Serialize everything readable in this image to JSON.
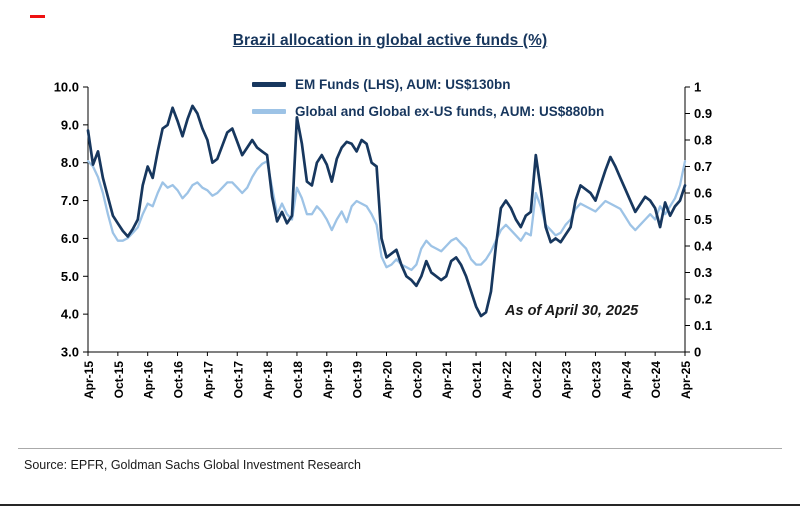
{
  "page": {
    "source_note": "Source: EPFR, Goldman Sachs Global Investment Research"
  },
  "chart_data": {
    "type": "line",
    "title": "Brazil allocation in global active funds (%)",
    "annotation": "As of April 30, 2025",
    "grid": false,
    "legend_position": "top",
    "n_points": 121,
    "x_tick_step": 6,
    "x_tick_labels": [
      "Apr-15",
      "Oct-15",
      "Apr-16",
      "Oct-16",
      "Apr-17",
      "Oct-17",
      "Apr-18",
      "Oct-18",
      "Apr-19",
      "Oct-19",
      "Apr-20",
      "Oct-20",
      "Apr-21",
      "Oct-21",
      "Apr-22",
      "Oct-22",
      "Apr-23",
      "Oct-23",
      "Apr-24",
      "Oct-24",
      "Apr-25"
    ],
    "left_axis": {
      "min": 3.0,
      "max": 10.0,
      "ticks": [
        "10.0",
        "9.0",
        "8.0",
        "7.0",
        "6.0",
        "5.0",
        "4.0",
        "3.0"
      ]
    },
    "right_axis": {
      "min": 0,
      "max": 1,
      "ticks": [
        "1",
        "0.9",
        "0.8",
        "0.7",
        "0.6",
        "0.5",
        "0.4",
        "0.3",
        "0.2",
        "0.1",
        "0"
      ]
    },
    "series": [
      {
        "name": "EM Funds (LHS), AUM: US$130bn",
        "axis": "left",
        "color": "#17375e",
        "width": 2.7,
        "values": [
          8.85,
          7.95,
          8.3,
          7.6,
          7.1,
          6.6,
          6.4,
          6.2,
          6.05,
          6.25,
          6.5,
          7.4,
          7.9,
          7.6,
          8.3,
          8.9,
          9.0,
          9.45,
          9.1,
          8.7,
          9.15,
          9.5,
          9.3,
          8.9,
          8.6,
          8.0,
          8.1,
          8.45,
          8.8,
          8.9,
          8.55,
          8.2,
          8.4,
          8.6,
          8.4,
          8.3,
          8.2,
          7.1,
          6.45,
          6.7,
          6.4,
          6.6,
          9.2,
          8.5,
          7.5,
          7.4,
          8.0,
          8.2,
          7.95,
          7.5,
          8.1,
          8.4,
          8.55,
          8.5,
          8.3,
          8.6,
          8.5,
          8.0,
          7.9,
          6.0,
          5.5,
          5.6,
          5.7,
          5.3,
          5.0,
          4.9,
          4.75,
          5.0,
          5.4,
          5.1,
          5.0,
          4.9,
          5.0,
          5.4,
          5.5,
          5.3,
          5.0,
          4.6,
          4.2,
          3.95,
          4.05,
          4.6,
          5.8,
          6.8,
          7.0,
          6.8,
          6.5,
          6.3,
          6.6,
          6.7,
          8.2,
          7.3,
          6.3,
          5.9,
          6.0,
          5.9,
          6.1,
          6.3,
          7.0,
          7.4,
          7.3,
          7.2,
          7.0,
          7.4,
          7.8,
          8.15,
          7.9,
          7.6,
          7.3,
          7.0,
          6.7,
          6.9,
          7.1,
          7.0,
          6.8,
          6.3,
          6.95,
          6.6,
          6.85,
          7.0,
          7.4
        ]
      },
      {
        "name": "Global and Global ex-US funds, AUM: US$880bn",
        "axis": "right",
        "color": "#9dc3e6",
        "width": 2.3,
        "values": [
          0.72,
          0.7,
          0.66,
          0.6,
          0.52,
          0.45,
          0.42,
          0.42,
          0.43,
          0.45,
          0.47,
          0.52,
          0.56,
          0.55,
          0.6,
          0.64,
          0.62,
          0.63,
          0.61,
          0.58,
          0.6,
          0.63,
          0.64,
          0.62,
          0.61,
          0.59,
          0.6,
          0.62,
          0.64,
          0.64,
          0.62,
          0.6,
          0.62,
          0.66,
          0.69,
          0.71,
          0.72,
          0.62,
          0.52,
          0.56,
          0.52,
          0.5,
          0.62,
          0.58,
          0.52,
          0.52,
          0.55,
          0.53,
          0.5,
          0.46,
          0.5,
          0.53,
          0.49,
          0.55,
          0.57,
          0.56,
          0.55,
          0.52,
          0.48,
          0.36,
          0.32,
          0.33,
          0.35,
          0.33,
          0.32,
          0.31,
          0.33,
          0.39,
          0.42,
          0.4,
          0.39,
          0.38,
          0.4,
          0.42,
          0.43,
          0.41,
          0.39,
          0.35,
          0.33,
          0.33,
          0.35,
          0.38,
          0.42,
          0.46,
          0.48,
          0.46,
          0.44,
          0.42,
          0.45,
          0.44,
          0.6,
          0.55,
          0.48,
          0.46,
          0.44,
          0.45,
          0.48,
          0.5,
          0.54,
          0.56,
          0.55,
          0.54,
          0.53,
          0.55,
          0.57,
          0.56,
          0.55,
          0.54,
          0.51,
          0.48,
          0.46,
          0.48,
          0.5,
          0.52,
          0.5,
          0.55,
          0.52,
          0.55,
          0.58,
          0.63,
          0.72
        ]
      }
    ]
  }
}
